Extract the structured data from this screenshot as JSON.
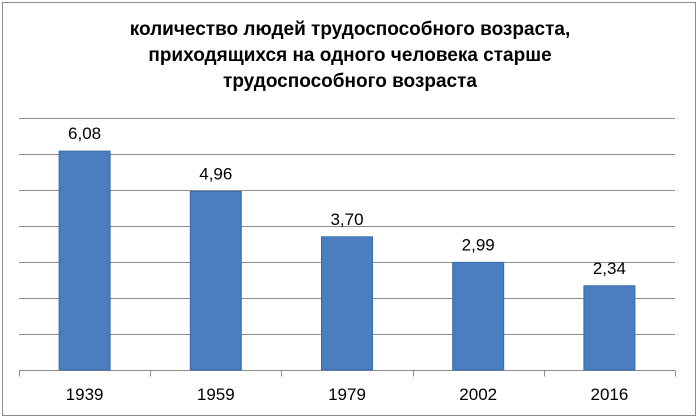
{
  "chart_data": {
    "type": "bar",
    "title_lines": [
      "количество людей трудоспособного возраста,",
      "приходящихся на одного человека старше",
      "трудоспособного возраста"
    ],
    "categories": [
      "1939",
      "1959",
      "1979",
      "2002",
      "2016"
    ],
    "values": [
      6.08,
      4.96,
      3.7,
      2.99,
      2.34
    ],
    "value_labels": [
      "6,08",
      "4,96",
      "3,70",
      "2,99",
      "2,34"
    ],
    "xlabel": "",
    "ylabel": "",
    "ylim": [
      0,
      7
    ],
    "grid": true,
    "legend": "none",
    "colors": {
      "bar": "#4a7ebf",
      "bar_border": "#3a6aa8",
      "grid": "#8c8c8c",
      "axis": "#8c8c8c"
    }
  }
}
